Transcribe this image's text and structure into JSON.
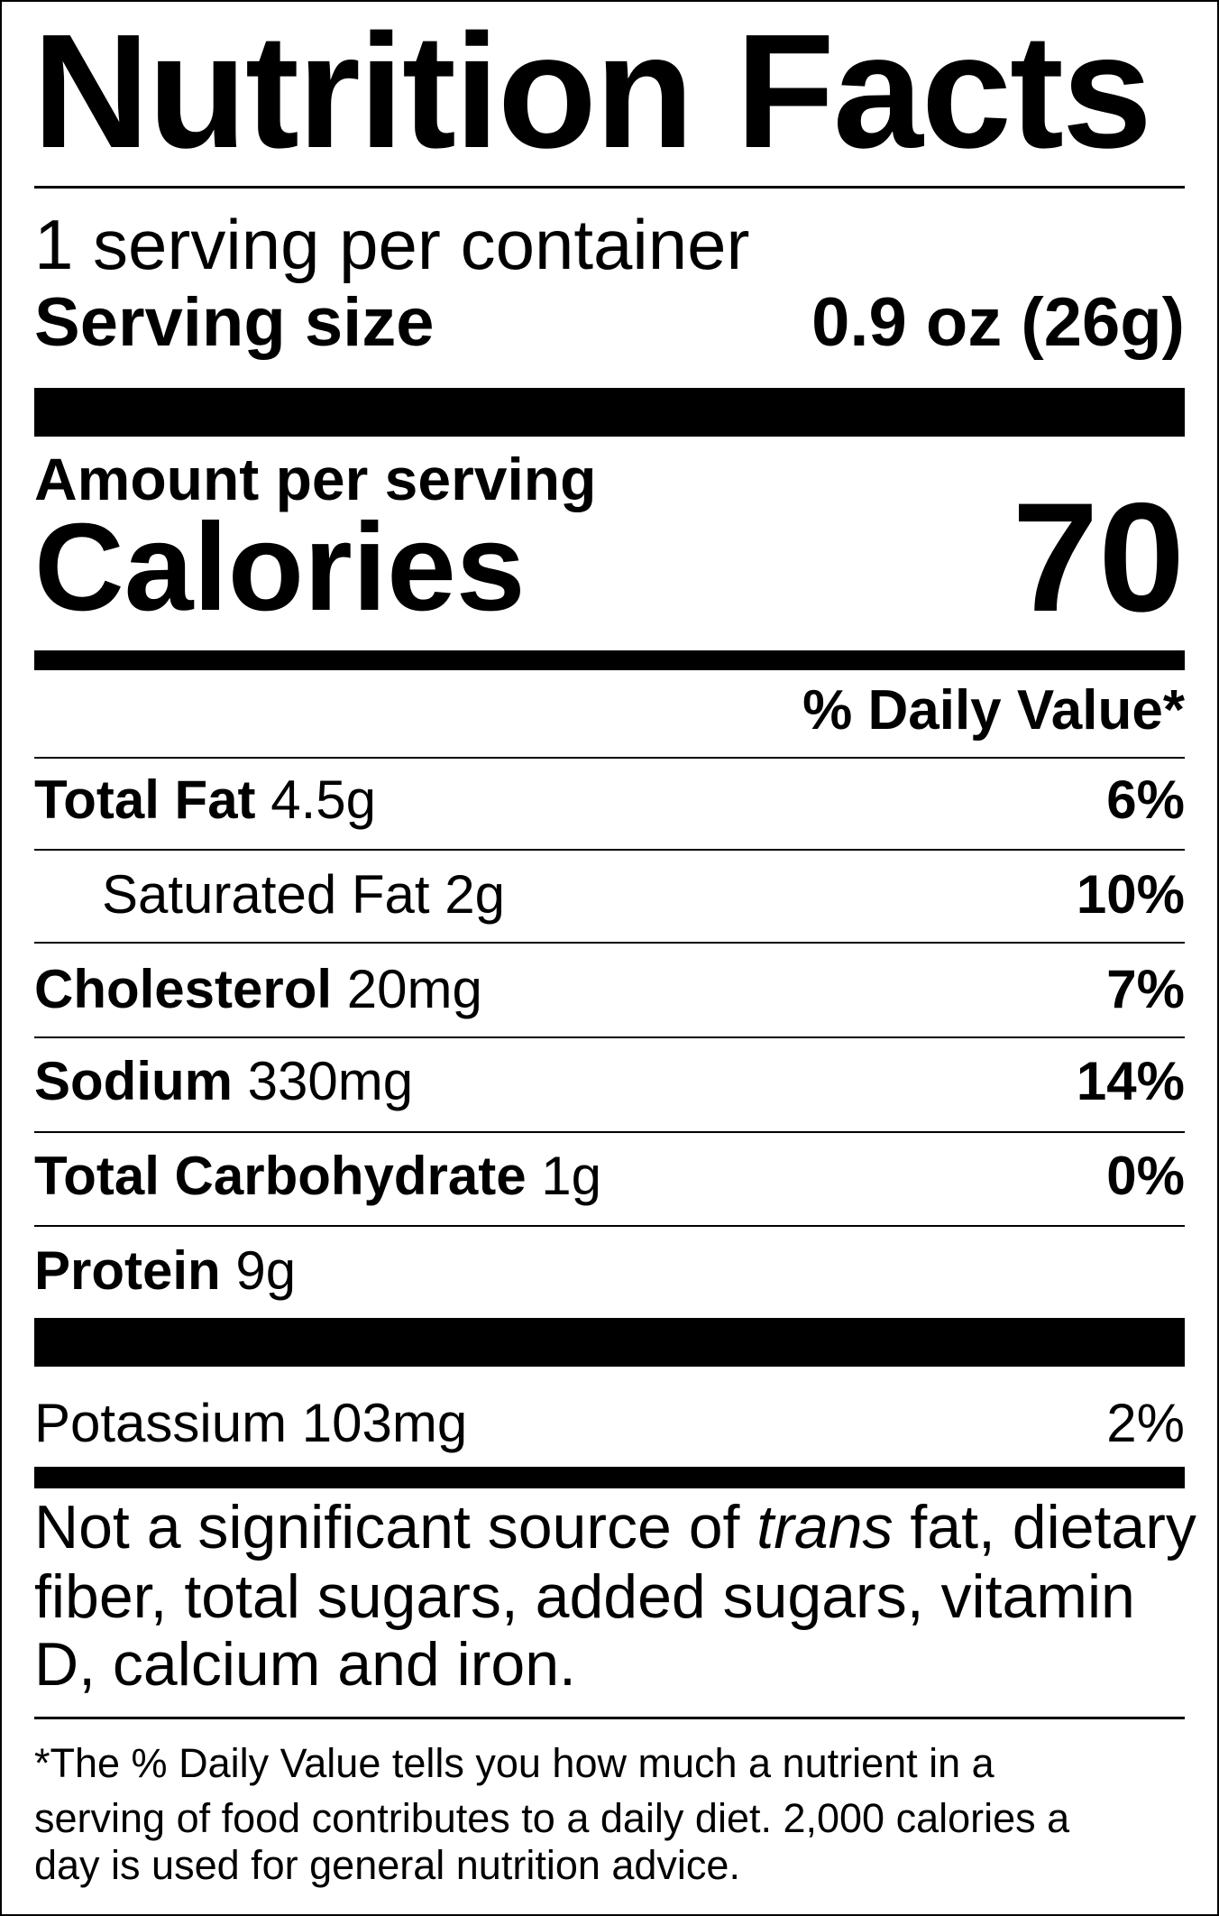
{
  "title": "Nutrition Facts",
  "servings_per_container": "1 serving per container",
  "serving_size": {
    "label": "Serving size",
    "value": "0.9 oz (26g)"
  },
  "amount_per_serving": "Amount per serving",
  "calories": {
    "label": "Calories",
    "value": "70"
  },
  "daily_value_header": "% Daily Value*",
  "nutrients": [
    {
      "name": "Total Fat",
      "amount": "4.5g",
      "dv": "6%"
    },
    {
      "name": "Saturated Fat",
      "amount": "2g",
      "dv": "10%"
    },
    {
      "name": "Cholesterol",
      "amount": "20mg",
      "dv": "7%"
    },
    {
      "name": "Sodium",
      "amount": "330mg",
      "dv": "14%"
    },
    {
      "name": "Total Carbohydrate",
      "amount": "1g",
      "dv": "0%"
    },
    {
      "name": "Protein",
      "amount": "9g",
      "dv": ""
    }
  ],
  "potassium": {
    "name": "Potassium",
    "amount": "103mg",
    "dv": "2%"
  },
  "not_significant": {
    "line1_pre": "Not a significant source of ",
    "line1_italic": "trans",
    "line1_post": " fat, dietary",
    "line2": "fiber, total sugars, added sugars, vitamin",
    "line3": "D, calcium and iron."
  },
  "footnote": {
    "line1": "*The % Daily Value tells you how much a nutrient in a",
    "line2": "serving of food contributes to a daily diet. 2,000 calories a",
    "line3": "day is used for general nutrition advice."
  }
}
